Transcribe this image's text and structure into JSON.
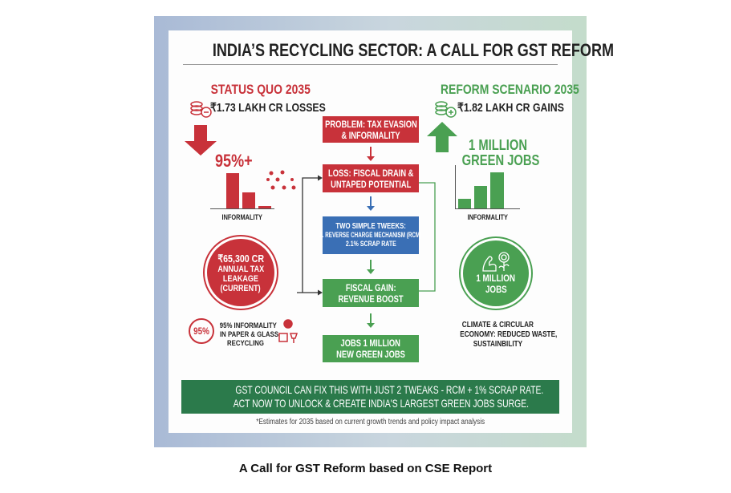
{
  "title": "INDIA’S RECYCLING SECTOR: A CALL FOR GST REFORM",
  "left": {
    "heading": "STATUS QUO 2035",
    "losses": "₹1.73 LAKH CR LOSSES",
    "percent": "95%+",
    "chart_label": "INFORMALITY",
    "circle": [
      "₹65,300 CR",
      "ANNUAL TAX",
      "LEAKAGE",
      "(CURRENT)"
    ],
    "badge": "95%",
    "note": [
      "95% INFORMALITY",
      "IN PAPER & GLASS",
      "RECYCLING"
    ],
    "color": "#c8323a"
  },
  "right": {
    "heading": "REFORM SCENARIO 2035",
    "gains": "₹1.82 LAKH CR GAINS",
    "jobs": [
      "1 MILLION",
      "GREEN JOBS"
    ],
    "chart_label": "INFORMALITY",
    "circle": [
      "1 MILLION",
      "JOBS"
    ],
    "note": [
      "CLIMATE & CIRCULAR",
      "ECONOMY: REDUCED WASTE,",
      "SUSTAINBILITY"
    ],
    "color": "#4aa052"
  },
  "flow": [
    {
      "lines": [
        "PROBLEM: TAX EVASION",
        "& INFORMALITY"
      ],
      "color": "#c8323a"
    },
    {
      "lines": [
        "LOSS: FISCAL DRAIN &",
        "UNTAPED POTENTIAL"
      ],
      "color": "#c8323a"
    },
    {
      "lines": [
        "TWO SIMPLE TWEEKS:",
        "1. REVERSE CHARGE MECHANISM (RCM)",
        "2.1% SCRAP RATE"
      ],
      "color": "#3a6fb5"
    },
    {
      "lines": [
        "FISCAL GAIN:",
        "REVENUE BOOST"
      ],
      "color": "#4aa052"
    },
    {
      "lines": [
        "JOBS 1 MILLION",
        "NEW GREEN JOBS"
      ],
      "color": "#4aa052"
    }
  ],
  "banner": [
    "GST COUNCIL CAN FIX THIS WITH JUST 2 TWEAKS - RCM + 1% SCRAP RATE.",
    "ACT NOW TO UNLOCK & CREATE INDIA'S LARGEST GREEN JOBS SURGE."
  ],
  "footnote": "*Estimates for 2035 based on current growth trends and policy impact analysis",
  "caption": "A Call for GST Reform based on CSE Report"
}
